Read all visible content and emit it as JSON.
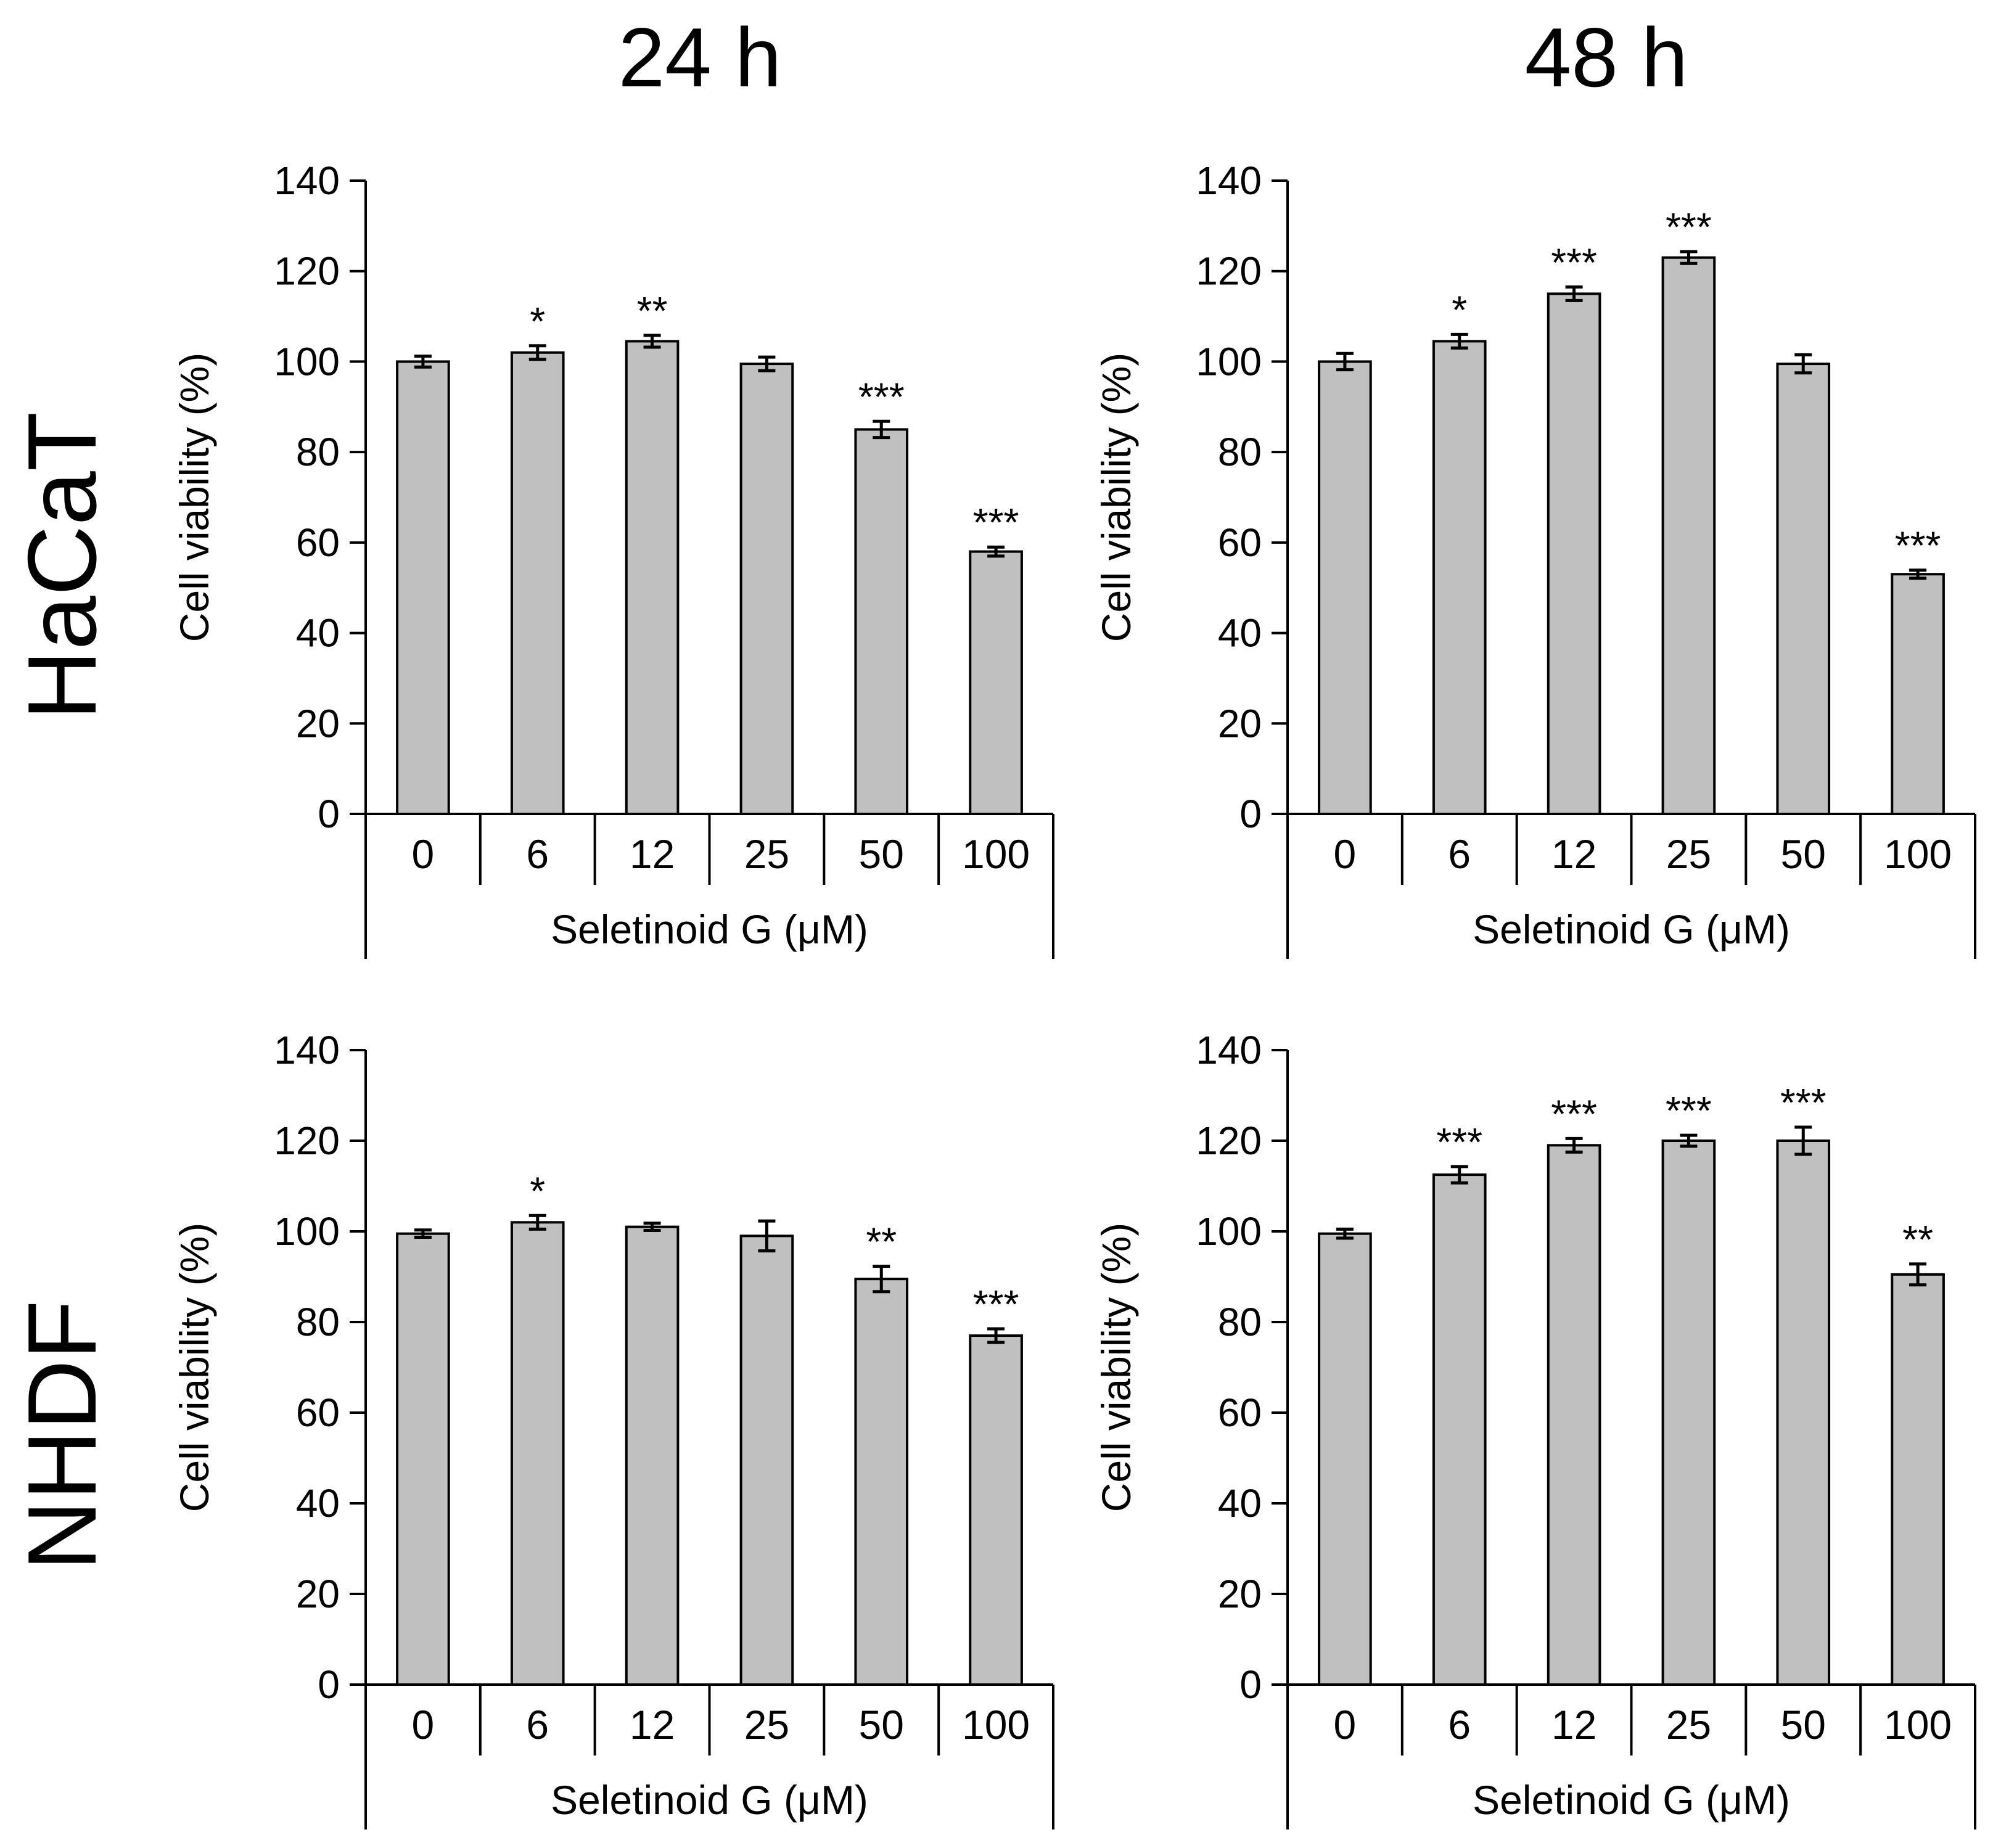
{
  "column_titles": [
    "24 h",
    "48 h"
  ],
  "row_titles": [
    "HaCaT",
    "NHDF"
  ],
  "colors": {
    "bar_fill": "#c0c0c0",
    "bar_stroke": "#000000",
    "axis": "#000000"
  },
  "chart_data": [
    {
      "type": "bar",
      "cell_line": "HaCaT",
      "time": "24 h",
      "categories": [
        "0",
        "6",
        "12",
        "25",
        "50",
        "100"
      ],
      "values": [
        100,
        102,
        104.5,
        99.5,
        85,
        58
      ],
      "errors": [
        1.2,
        1.5,
        1.3,
        1.5,
        1.8,
        1.0
      ],
      "significance": [
        "",
        "*",
        "**",
        "",
        "***",
        "***"
      ],
      "ylabel": "Cell viability (%)",
      "xlabel": "Seletinoid G (μM)",
      "ylim": [
        0,
        140
      ],
      "yticks": [
        "0",
        "20",
        "40",
        "60",
        "80",
        "100",
        "120",
        "140"
      ]
    },
    {
      "type": "bar",
      "cell_line": "HaCaT",
      "time": "48 h",
      "categories": [
        "0",
        "6",
        "12",
        "25",
        "50",
        "100"
      ],
      "values": [
        100,
        104.5,
        115,
        123,
        99.5,
        53
      ],
      "errors": [
        1.8,
        1.5,
        1.5,
        1.3,
        2.0,
        0.9
      ],
      "significance": [
        "",
        "*",
        "***",
        "***",
        "",
        "***"
      ],
      "ylabel": "Cell viability (%)",
      "xlabel": "Seletinoid G (μM)",
      "ylim": [
        0,
        140
      ],
      "yticks": [
        "0",
        "20",
        "40",
        "60",
        "80",
        "100",
        "120",
        "140"
      ]
    },
    {
      "type": "bar",
      "cell_line": "NHDF",
      "time": "24 h",
      "categories": [
        "0",
        "6",
        "12",
        "25",
        "50",
        "100"
      ],
      "values": [
        99.5,
        102,
        101,
        99,
        89.5,
        77
      ],
      "errors": [
        0.8,
        1.5,
        0.8,
        3.3,
        2.8,
        1.5
      ],
      "significance": [
        "",
        "*",
        "",
        "",
        "**",
        "***"
      ],
      "ylabel": "Cell viability (%)",
      "xlabel": "Seletinoid G (μM)",
      "ylim": [
        0,
        140
      ],
      "yticks": [
        "0",
        "20",
        "40",
        "60",
        "80",
        "100",
        "120",
        "140"
      ]
    },
    {
      "type": "bar",
      "cell_line": "NHDF",
      "time": "48 h",
      "categories": [
        "0",
        "6",
        "12",
        "25",
        "50",
        "100"
      ],
      "values": [
        99.5,
        112.5,
        119,
        120,
        120,
        90.5
      ],
      "errors": [
        1.0,
        1.8,
        1.5,
        1.2,
        3.0,
        2.3
      ],
      "significance": [
        "",
        "***",
        "***",
        "***",
        "***",
        "**"
      ],
      "ylabel": "Cell viability (%)",
      "xlabel": "Seletinoid G (μM)",
      "ylim": [
        0,
        140
      ],
      "yticks": [
        "0",
        "20",
        "40",
        "60",
        "80",
        "100",
        "120",
        "140"
      ]
    }
  ]
}
